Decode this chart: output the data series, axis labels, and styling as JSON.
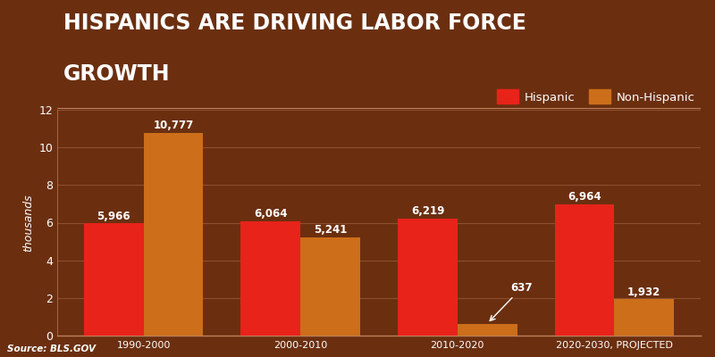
{
  "title_line1": "HISPANICS ARE DRIVING LABOR FORCE",
  "title_line2": "GROWTH",
  "categories": [
    "1990-2000",
    "2000-2010",
    "2010-2020",
    "2020-2030, PROJECTED"
  ],
  "hispanic_values": [
    5966,
    6064,
    6219,
    6964
  ],
  "non_hispanic_values": [
    10777,
    5241,
    637,
    1932
  ],
  "hispanic_color": "#e8231a",
  "non_hispanic_color": "#cc6e1a",
  "background_color": "#6b2f10",
  "title_color": "#ffffff",
  "tick_color": "#ffffff",
  "grid_color": "#8b5030",
  "ylabel": "thousands",
  "source_text": "Source: BLS.GOV",
  "bar_width": 0.38,
  "ylim": [
    0,
    12
  ],
  "yticks": [
    0,
    2,
    4,
    6,
    8,
    10,
    12
  ],
  "legend_hispanic": "Hispanic",
  "legend_non_hispanic": "Non-Hispanic"
}
